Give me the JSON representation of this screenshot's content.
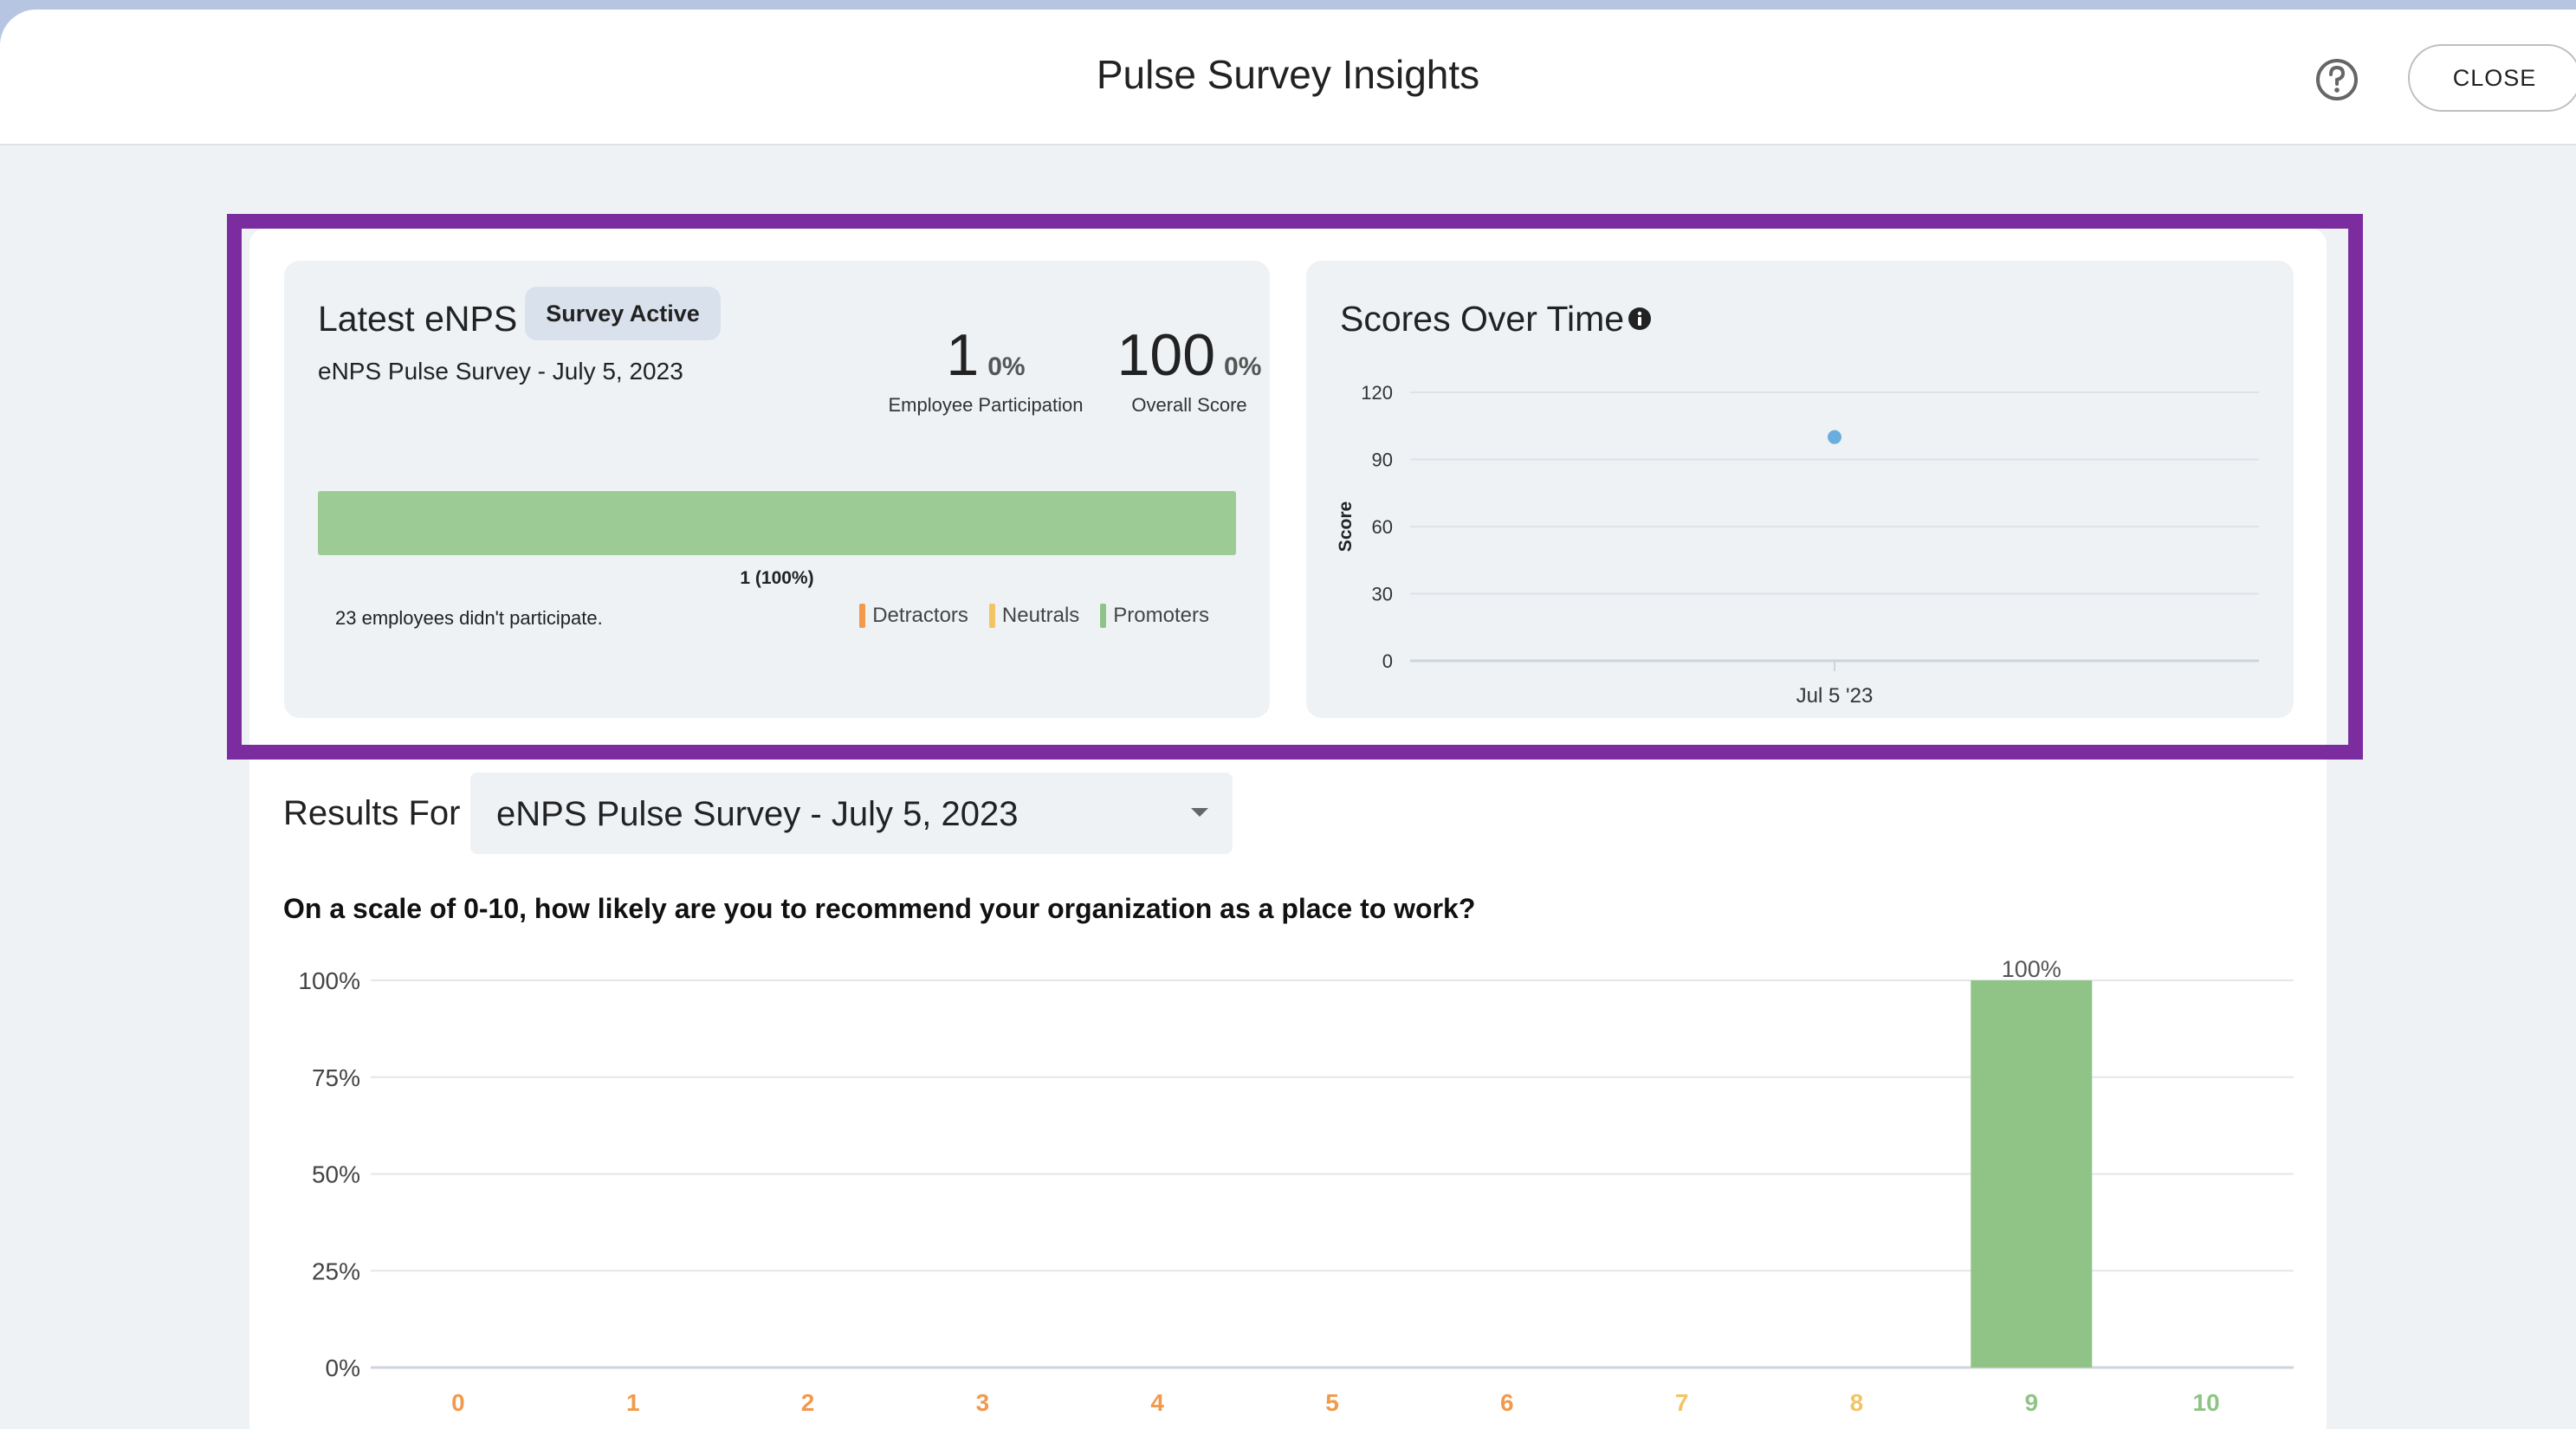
{
  "modal": {
    "title": "Pulse Survey Insights",
    "close_label": "CLOSE",
    "help_icon": "question-circle-icon"
  },
  "latest_enps": {
    "title": "Latest eNPS",
    "badge": "Survey Active",
    "survey_name": "eNPS Pulse Survey - July 5, 2023",
    "participation_value": "1",
    "participation_pct": "0%",
    "participation_label": "Employee Participation",
    "score_value": "100",
    "score_pct": "0%",
    "score_label": "Overall Score",
    "distribution": {
      "detractors": 0,
      "neutrals": 0,
      "promoters": 1,
      "label": "1 (100%)"
    },
    "non_participation": "23 employees didn't participate.",
    "legend": [
      {
        "label": "Detractors",
        "color": "#f19a4c"
      },
      {
        "label": "Neutrals",
        "color": "#f2c464"
      },
      {
        "label": "Promoters",
        "color": "#8fc486"
      }
    ]
  },
  "scores_over_time": {
    "title": "Scores Over Time",
    "info_icon": "info-circle-icon"
  },
  "results": {
    "label": "Results For",
    "selected_survey": "eNPS Pulse Survey - July 5, 2023",
    "question": "On a scale of 0-10, how likely are you to recommend your organization as a place to work?"
  },
  "chart_data": [
    {
      "type": "scatter",
      "title": "Scores Over Time",
      "xlabel": "",
      "ylabel": "Score",
      "categories": [
        "Jul 5 '23"
      ],
      "values": [
        100
      ],
      "y_ticks": [
        0,
        30,
        60,
        90,
        120
      ],
      "ylim": [
        0,
        120
      ],
      "grid": true,
      "point_color": "#6aaee0"
    },
    {
      "type": "bar",
      "title": "",
      "xlabel": "",
      "ylabel": "",
      "categories": [
        "0",
        "1",
        "2",
        "3",
        "4",
        "5",
        "6",
        "7",
        "8",
        "9",
        "10"
      ],
      "values": [
        0,
        0,
        0,
        0,
        0,
        0,
        0,
        0,
        0,
        100,
        0
      ],
      "y_ticks": [
        "0%",
        "25%",
        "50%",
        "75%",
        "100%"
      ],
      "ylim": [
        0,
        100
      ],
      "data_labels": [
        "",
        "",
        "",
        "",
        "",
        "",
        "",
        "",
        "",
        "100%",
        ""
      ],
      "category_colors": [
        "#f19a4c",
        "#f19a4c",
        "#f19a4c",
        "#f19a4c",
        "#f19a4c",
        "#f19a4c",
        "#f19a4c",
        "#f2c464",
        "#f2c464",
        "#8fc486",
        "#8fc486"
      ],
      "bar_color": "#8fc486",
      "grid": true
    }
  ]
}
